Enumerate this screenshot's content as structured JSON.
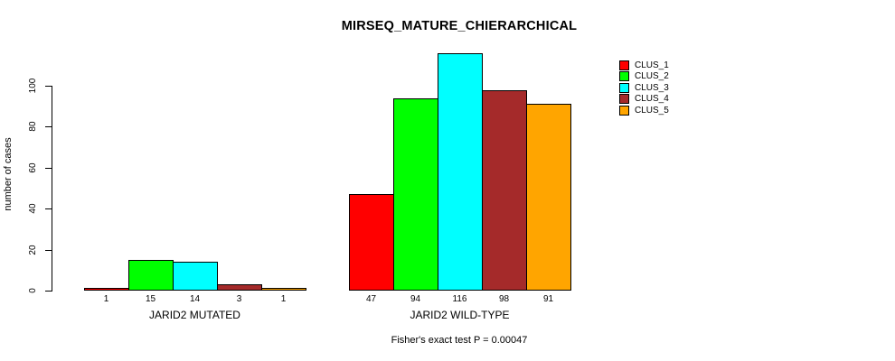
{
  "chart_data": {
    "type": "bar",
    "title": "MIRSEQ_MATURE_CHIERARCHICAL",
    "ylabel": "number of cases",
    "xlabel": "",
    "footnote": "Fisher's exact test P = 0.00047",
    "yticks": [
      0,
      20,
      40,
      60,
      80,
      100
    ],
    "ylim": [
      0,
      116
    ],
    "grid": false,
    "legend_position": "top-right",
    "categories": [
      "JARID2 MUTATED",
      "JARID2 WILD-TYPE"
    ],
    "series": [
      {
        "name": "CLUS_1",
        "color": "#FF0000",
        "values": [
          1,
          47
        ]
      },
      {
        "name": "CLUS_2",
        "color": "#00FF00",
        "values": [
          15,
          94
        ]
      },
      {
        "name": "CLUS_3",
        "color": "#00FFFF",
        "values": [
          14,
          116
        ]
      },
      {
        "name": "CLUS_4",
        "color": "#A52A2A",
        "values": [
          3,
          98
        ]
      },
      {
        "name": "CLUS_5",
        "color": "#FFA500",
        "values": [
          1,
          91
        ]
      }
    ]
  }
}
